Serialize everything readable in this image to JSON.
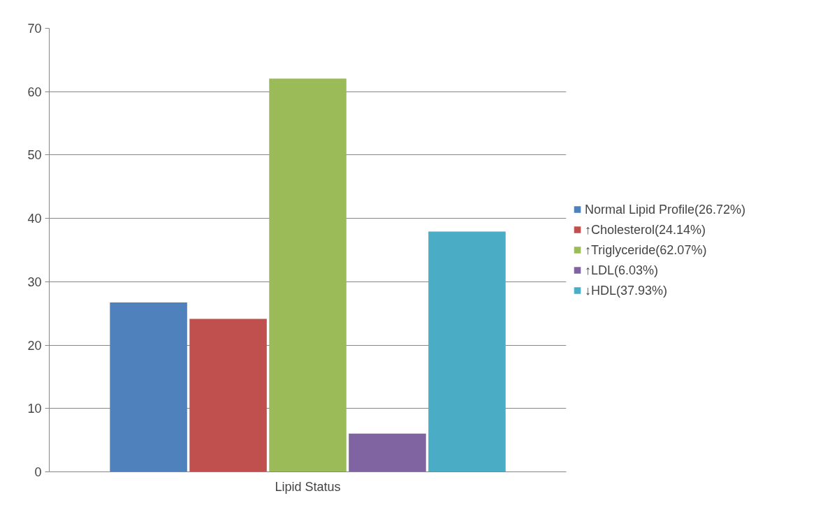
{
  "chart_data": {
    "type": "bar",
    "xlabel": null,
    "categories": [
      "Lipid Status"
    ],
    "series": [
      {
        "name": "Normal Lipid Profile(26.72%)",
        "color": "#4f81bd",
        "values": [
          26.72
        ]
      },
      {
        "name": "↑Cholesterol(24.14%)",
        "color": "#c0504d",
        "values": [
          24.14
        ]
      },
      {
        "name": "↑Triglyceride(62.07%)",
        "color": "#9bbb59",
        "values": [
          62.07
        ]
      },
      {
        "name": "↑LDL(6.03%)",
        "color": "#8064a2",
        "values": [
          6.03
        ]
      },
      {
        "name": "↓HDL(37.93%)",
        "color": "#4bacc6",
        "values": [
          37.93
        ]
      }
    ],
    "ylim": [
      0,
      70
    ],
    "yticks": [
      0,
      10,
      20,
      30,
      40,
      50,
      60,
      70
    ],
    "grid": "y",
    "legend": "right"
  }
}
